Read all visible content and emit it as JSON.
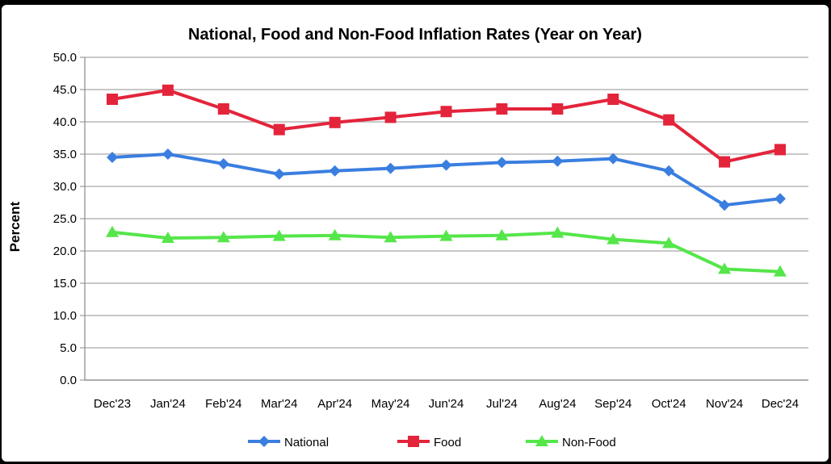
{
  "chart_data": {
    "type": "line",
    "title": "National, Food and Non-Food Inflation Rates (Year on Year)",
    "xlabel": "",
    "ylabel": "Percent",
    "ylim": [
      0,
      50
    ],
    "y_ticks": [
      "0.0",
      "5.0",
      "10.0",
      "15.0",
      "20.0",
      "25.0",
      "30.0",
      "35.0",
      "40.0",
      "45.0",
      "50.0"
    ],
    "grid": true,
    "legend_position": "bottom",
    "categories": [
      "Dec'23",
      "Jan'24",
      "Feb'24",
      "Mar'24",
      "Apr'24",
      "May'24",
      "Jun'24",
      "Jul'24",
      "Aug'24",
      "Sep'24",
      "Oct'24",
      "Nov'24",
      "Dec'24"
    ],
    "series": [
      {
        "name": "National",
        "marker": "diamond",
        "color": "#3a7ee0",
        "values": [
          34.5,
          35.0,
          33.5,
          31.9,
          32.4,
          32.8,
          33.3,
          33.7,
          33.9,
          34.3,
          32.4,
          27.1,
          28.1
        ]
      },
      {
        "name": "Food",
        "marker": "square",
        "color": "#e3243b",
        "values": [
          43.5,
          44.9,
          42.0,
          38.8,
          39.9,
          40.7,
          41.6,
          42.0,
          42.0,
          43.5,
          40.3,
          33.8,
          35.7
        ]
      },
      {
        "name": "Non-Food",
        "marker": "triangle",
        "color": "#55e64a",
        "values": [
          22.9,
          22.0,
          22.1,
          22.3,
          22.4,
          22.1,
          22.3,
          22.4,
          22.8,
          21.8,
          21.2,
          17.2,
          16.8
        ]
      }
    ]
  }
}
